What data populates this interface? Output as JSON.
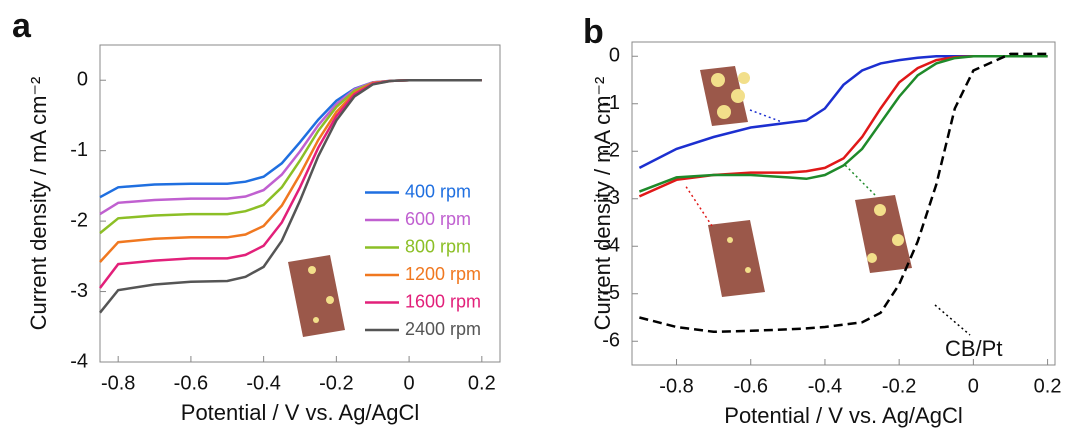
{
  "chart_data": [
    {
      "type": "line",
      "panel_label": "a",
      "xlabel": "Potential / V vs. Ag/AgCl",
      "ylabel": "Current density / mA cm⁻²",
      "x": [
        -0.85,
        -0.8,
        -0.7,
        -0.6,
        -0.5,
        -0.45,
        -0.4,
        -0.35,
        -0.3,
        -0.25,
        -0.2,
        -0.15,
        -0.1,
        -0.05,
        0,
        0.1,
        0.2
      ],
      "xlim": [
        -0.85,
        0.25
      ],
      "xticks": [
        -0.8,
        -0.6,
        -0.4,
        -0.2,
        0,
        0.2
      ],
      "ylim": [
        -4,
        0.5
      ],
      "yticks": [
        -4,
        -3,
        -2,
        -1,
        0
      ],
      "legend": "lower right",
      "series": [
        {
          "name": "400 rpm",
          "color": "#1f6fe0",
          "values": [
            -1.66,
            -1.52,
            -1.48,
            -1.47,
            -1.47,
            -1.44,
            -1.37,
            -1.18,
            -0.88,
            -0.56,
            -0.29,
            -0.12,
            -0.03,
            -0.01,
            0,
            0,
            0
          ]
        },
        {
          "name": "600 rpm",
          "color": "#c060d0",
          "values": [
            -1.9,
            -1.74,
            -1.7,
            -1.68,
            -1.68,
            -1.65,
            -1.56,
            -1.34,
            -1.01,
            -0.64,
            -0.34,
            -0.13,
            -0.03,
            -0.01,
            0,
            0,
            0
          ]
        },
        {
          "name": "800 rpm",
          "color": "#8cbf26",
          "values": [
            -2.17,
            -1.96,
            -1.92,
            -1.9,
            -1.9,
            -1.86,
            -1.77,
            -1.52,
            -1.14,
            -0.72,
            -0.38,
            -0.15,
            -0.04,
            -0.01,
            0,
            0,
            0
          ]
        },
        {
          "name": "1200 rpm",
          "color": "#f07820",
          "values": [
            -2.58,
            -2.3,
            -2.25,
            -2.23,
            -2.23,
            -2.19,
            -2.07,
            -1.78,
            -1.34,
            -0.85,
            -0.45,
            -0.18,
            -0.04,
            -0.01,
            0,
            0,
            0
          ]
        },
        {
          "name": "1600 rpm",
          "color": "#e2207a",
          "values": [
            -2.95,
            -2.61,
            -2.56,
            -2.53,
            -2.53,
            -2.48,
            -2.35,
            -2.02,
            -1.52,
            -0.96,
            -0.51,
            -0.2,
            -0.05,
            -0.01,
            0,
            0,
            0
          ]
        },
        {
          "name": "2400 rpm",
          "color": "#555555",
          "values": [
            -3.3,
            -2.98,
            -2.9,
            -2.86,
            -2.85,
            -2.79,
            -2.65,
            -2.28,
            -1.71,
            -1.08,
            -0.57,
            -0.23,
            -0.06,
            -0.01,
            0,
            0,
            0
          ]
        }
      ]
    },
    {
      "type": "line",
      "panel_label": "b",
      "xlabel": "Potential / V vs. Ag/AgCl",
      "ylabel": "Current density / mA cm⁻²",
      "x": [
        -0.9,
        -0.8,
        -0.7,
        -0.6,
        -0.5,
        -0.45,
        -0.4,
        -0.35,
        -0.3,
        -0.25,
        -0.2,
        -0.15,
        -0.1,
        -0.05,
        0,
        0.1,
        0.2
      ],
      "xlim": [
        -0.92,
        0.22
      ],
      "xticks": [
        -0.8,
        -0.6,
        -0.4,
        -0.2,
        0,
        0.2
      ],
      "ylim": [
        -6.5,
        0.3
      ],
      "yticks": [
        -6,
        -5,
        -4,
        -3,
        -2,
        -1,
        0
      ],
      "annotations": [
        "CB/Pt"
      ],
      "series": [
        {
          "color": "#1c2fd0",
          "values": [
            -2.35,
            -1.95,
            -1.7,
            -1.5,
            -1.4,
            -1.35,
            -1.1,
            -0.6,
            -0.3,
            -0.15,
            -0.08,
            -0.03,
            0,
            0,
            0,
            0,
            0
          ]
        },
        {
          "color": "#e01818",
          "values": [
            -2.95,
            -2.6,
            -2.5,
            -2.45,
            -2.45,
            -2.42,
            -2.35,
            -2.15,
            -1.7,
            -1.1,
            -0.55,
            -0.25,
            -0.08,
            -0.02,
            0,
            0,
            0
          ]
        },
        {
          "color": "#1f8a2a",
          "values": [
            -2.85,
            -2.55,
            -2.5,
            -2.5,
            -2.55,
            -2.58,
            -2.5,
            -2.3,
            -1.95,
            -1.4,
            -0.85,
            -0.4,
            -0.15,
            -0.04,
            0,
            0,
            0
          ]
        },
        {
          "color": "#000000",
          "dashed": true,
          "values": [
            -5.5,
            -5.7,
            -5.8,
            -5.78,
            -5.75,
            -5.73,
            -5.7,
            -5.65,
            -5.6,
            -5.4,
            -4.8,
            -3.9,
            -2.7,
            -1.1,
            -0.3,
            0.05,
            0.05
          ]
        }
      ]
    }
  ]
}
